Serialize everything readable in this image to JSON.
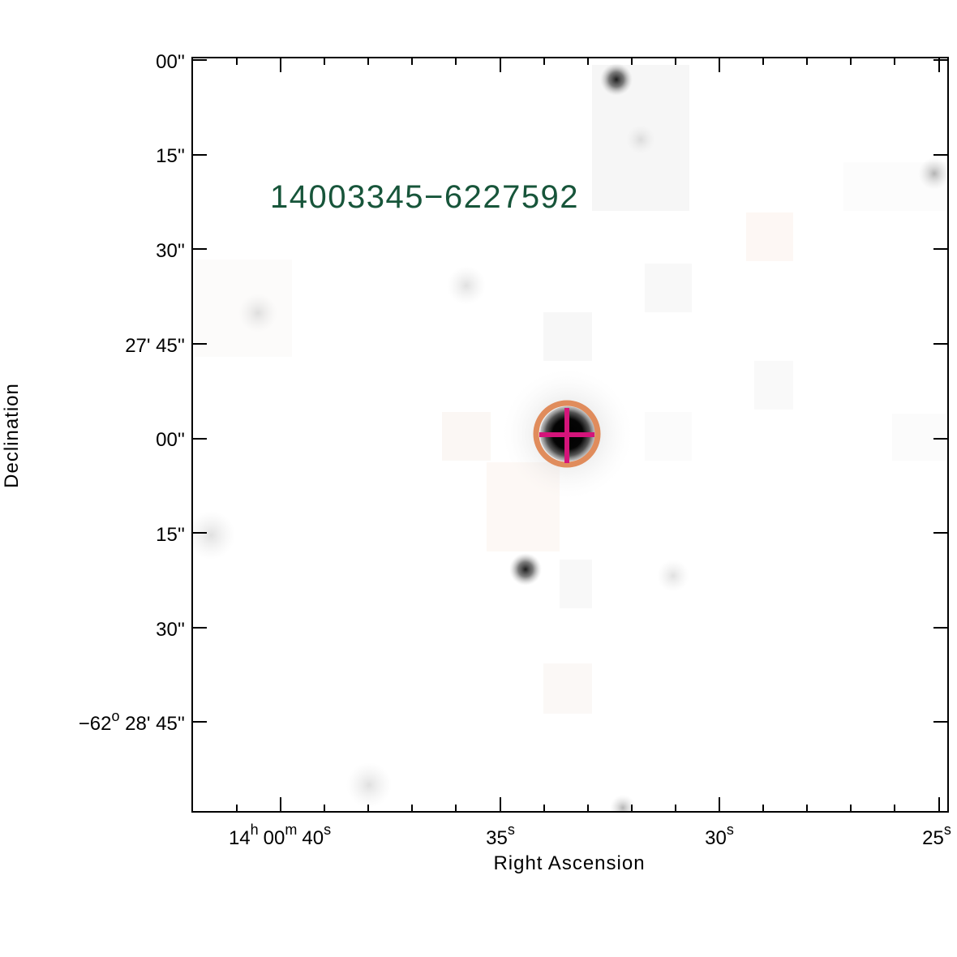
{
  "figure": {
    "source_id": "14003345−6227592",
    "source_label_color": "#17553a",
    "xlabel": "Right Ascension",
    "ylabel": "Declination",
    "colors": {
      "frame": "#000000",
      "target_circle": "#e08c5c",
      "crosshair": "#d4147a",
      "star": "#111111",
      "background": "#ffffff"
    },
    "x_ticks": [
      {
        "h": "14",
        "h_unit": "h",
        "m": "00",
        "m_unit": "m",
        "s": "40",
        "s_unit": "s"
      },
      {
        "s": "35",
        "s_unit": "s"
      },
      {
        "s": "30",
        "s_unit": "s"
      },
      {
        "s": "25",
        "s_unit": "s"
      }
    ],
    "y_ticks": [
      {
        "text": "00''"
      },
      {
        "text": "15''"
      },
      {
        "text": "30''"
      },
      {
        "text": "27' 45''"
      },
      {
        "text": "00''"
      },
      {
        "text": "15''"
      },
      {
        "text": "30''"
      },
      {
        "deg": "−62",
        "deg_unit": "o",
        "rest": " 28' 45''"
      }
    ]
  }
}
